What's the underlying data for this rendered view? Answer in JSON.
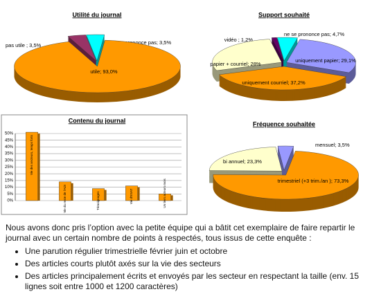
{
  "chart_data": [
    {
      "type": "pie",
      "title": "Utilité du journal",
      "labels": [
        "pas utile ; 3,5%",
        "ne se prononce pas; 3,5%",
        "utile; 93,0%"
      ],
      "values": [
        3.5,
        3.5,
        93.0
      ],
      "colors": [
        "#993366",
        "#00FFFF",
        "#FF9900"
      ]
    },
    {
      "type": "pie",
      "title": "Support souhaité",
      "labels": [
        "vidéo ; 1,2%",
        "ne se prononce pas; 4,7%",
        "uniquement papier; 29,1%",
        "uniquement courriel; 37,2%",
        "papier + courriel; 28%"
      ],
      "values": [
        1.2,
        4.7,
        29.1,
        37.2,
        28
      ],
      "colors": [
        "#660066",
        "#00FFFF",
        "#9999FF",
        "#FF9900",
        "#FFFFCC"
      ]
    },
    {
      "type": "bar",
      "title": "Contenu du journal",
      "categories": [
        "Vie des secteurs, temps forts",
        "Vie du reste de l'ADI",
        "Témoignages",
        "Vie d'ESAT",
        "Un tiers acteurs mois"
      ],
      "values": [
        51,
        14,
        9,
        11,
        5
      ],
      "color": "#FF9900",
      "ylim": [
        0,
        50
      ],
      "yticks": [
        {
          "value": 0,
          "label": "0%"
        },
        {
          "value": 5,
          "label": "5%"
        },
        {
          "value": 10,
          "label": "10%"
        },
        {
          "value": 15,
          "label": "15%"
        },
        {
          "value": 20,
          "label": "20%"
        },
        {
          "value": 25,
          "label": "25%"
        },
        {
          "value": 30,
          "label": "30%"
        },
        {
          "value": 35,
          "label": "35%"
        },
        {
          "value": 40,
          "label": "40%"
        },
        {
          "value": 45,
          "label": "45%"
        },
        {
          "value": 50,
          "label": "50%"
        }
      ],
      "grid": true
    },
    {
      "type": "pie",
      "title": "Fréquence souhaitée",
      "labels": [
        "mensuel; 3,5%",
        "trimestriel (+3 trim./an ); 73,3%",
        "bi annuel; 23,3%"
      ],
      "values": [
        3.5,
        73.3,
        23.3
      ],
      "colors": [
        "#9999FF",
        "#FF9900",
        "#FFFFCC"
      ]
    }
  ],
  "document": {
    "paragraph": "Nous avons donc pris l’option avec la petite équipe qui a bâtit cet exemplaire de faire repartir le journal avec un certain nombre de points à respectés, tous issus de cette enquête :",
    "bullets": [
      "Une parution régulier trimestrielle  février juin et octobre",
      "Des articles courts plutôt axés sur la vie des secteurs",
      "Des articles principalement écrits et envoyés par les secteur en respectant la taille (env. 15 lignes soit entre 1000 et 1200 caractères)"
    ]
  }
}
